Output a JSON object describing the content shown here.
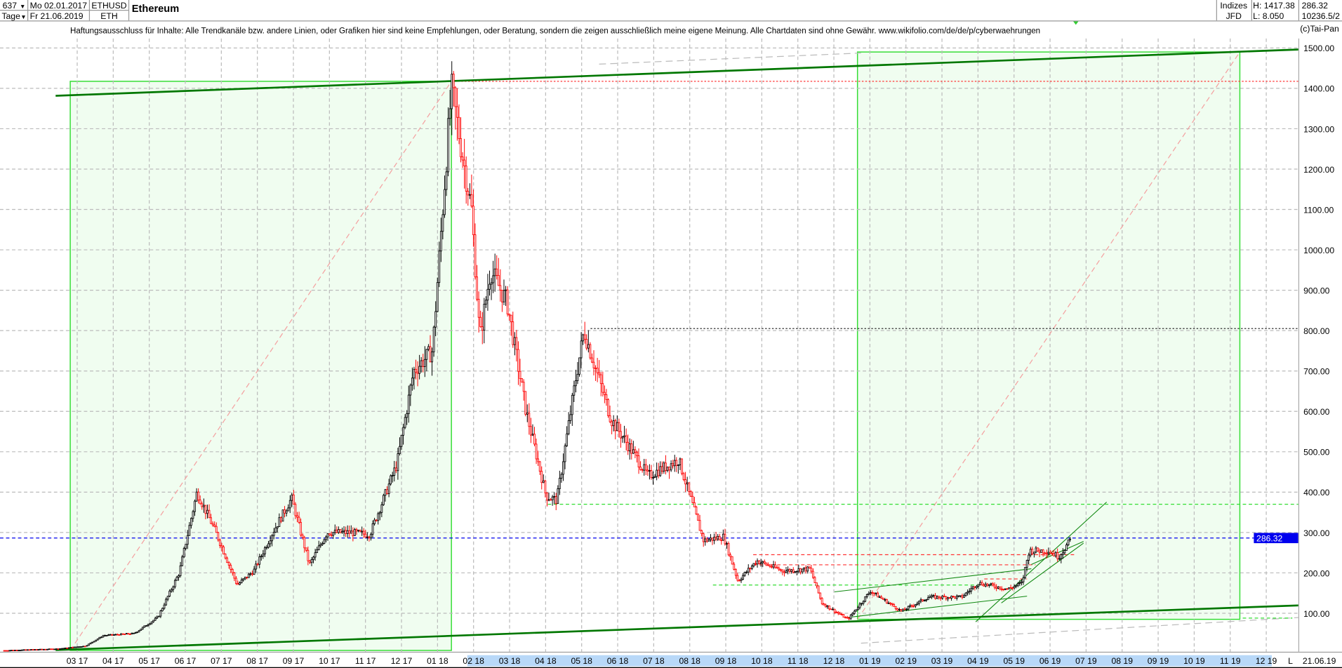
{
  "header": {
    "bar_count": "637",
    "period": "Tage",
    "date_from": "Mo 02.01.2017",
    "date_to": "Fr 21.06.2019",
    "symbol": "ETHUSD",
    "symbol_short": "ETH",
    "title": "Ethereum",
    "category": "Indizes",
    "exchange": "JFD",
    "high": "H: 1417.38",
    "low": "L: 8.050",
    "last": "286.32",
    "volume": "10236.5/2",
    "copyright": "(c)Tai-Pan"
  },
  "disclaimer": "Haftungsausschluss für Inhalte: Alle Trendkanäle bzw. andere Linien, oder Grafiken hier sind keine Empfehlungen, oder Beratung, sondern die zeigen ausschließlich meine eigene Meinung. Alle Chartdaten sind ohne Gewähr.  www.wikifolio.com/de/de/p/cyberwaehrungen",
  "colors": {
    "up": "#000000",
    "down": "#ff0000",
    "box_fill": "#f0fdf0",
    "box_stroke": "#33dd33",
    "trend": "#007700",
    "last_price": "#0000ee"
  },
  "chart_data": {
    "type": "candlestick",
    "title": "Ethereum",
    "ylim": [
      0,
      1560
    ],
    "grid": true,
    "y_ticks": [
      "100.00",
      "200.00",
      "300.00",
      "400.00",
      "500.00",
      "600.00",
      "700.00",
      "800.00",
      "900.00",
      "1000.00",
      "1100.00",
      "1200.00",
      "1300.00",
      "1400.00",
      "1500.00"
    ],
    "x_ticks": [
      "03 17",
      "04 17",
      "05 17",
      "06 17",
      "07 17",
      "08 17",
      "09 17",
      "10 17",
      "11 17",
      "12 17",
      "01 18",
      "02 18",
      "03 18",
      "04 18",
      "05 18",
      "06 18",
      "07 18",
      "08 18",
      "09 18",
      "10 18",
      "11 18",
      "12 18",
      "01 19",
      "02 19",
      "03 19",
      "04 19",
      "05 19",
      "06 19",
      "07 19",
      "08 19",
      "09 19",
      "10 19",
      "11 19",
      "12 19"
    ],
    "x_end_marker": "L",
    "x_end_label": "21.06.19",
    "last_price_label": "286.32",
    "close_path": [
      [
        "2017-01-02",
        8
      ],
      [
        "2017-02-15",
        12
      ],
      [
        "2017-03-10",
        19
      ],
      [
        "2017-03-25",
        45
      ],
      [
        "2017-04-20",
        50
      ],
      [
        "2017-05-10",
        90
      ],
      [
        "2017-05-28",
        200
      ],
      [
        "2017-06-12",
        400
      ],
      [
        "2017-06-28",
        300
      ],
      [
        "2017-07-16",
        170
      ],
      [
        "2017-07-30",
        205
      ],
      [
        "2017-08-15",
        300
      ],
      [
        "2017-08-31",
        385
      ],
      [
        "2017-09-15",
        220
      ],
      [
        "2017-09-30",
        300
      ],
      [
        "2017-10-20",
        300
      ],
      [
        "2017-11-05",
        295
      ],
      [
        "2017-11-28",
        470
      ],
      [
        "2017-12-12",
        700
      ],
      [
        "2017-12-28",
        750
      ],
      [
        "2018-01-13",
        1400
      ],
      [
        "2018-01-30",
        1100
      ],
      [
        "2018-02-06",
        780
      ],
      [
        "2018-02-15",
        950
      ],
      [
        "2018-03-01",
        870
      ],
      [
        "2018-03-17",
        600
      ],
      [
        "2018-04-03",
        390
      ],
      [
        "2018-04-12",
        380
      ],
      [
        "2018-04-28",
        680
      ],
      [
        "2018-05-05",
        800
      ],
      [
        "2018-05-28",
        580
      ],
      [
        "2018-06-15",
        500
      ],
      [
        "2018-06-28",
        440
      ],
      [
        "2018-07-24",
        480
      ],
      [
        "2018-08-14",
        280
      ],
      [
        "2018-08-31",
        290
      ],
      [
        "2018-09-12",
        180
      ],
      [
        "2018-09-28",
        230
      ],
      [
        "2018-10-20",
        205
      ],
      [
        "2018-11-12",
        210
      ],
      [
        "2018-11-22",
        125
      ],
      [
        "2018-12-14",
        85
      ],
      [
        "2019-01-02",
        155
      ],
      [
        "2019-01-28",
        105
      ],
      [
        "2019-02-20",
        140
      ],
      [
        "2019-03-20",
        140
      ],
      [
        "2019-04-03",
        175
      ],
      [
        "2019-04-28",
        160
      ],
      [
        "2019-05-10",
        175
      ],
      [
        "2019-05-16",
        255
      ],
      [
        "2019-06-01",
        255
      ],
      [
        "2019-06-10",
        240
      ],
      [
        "2019-06-21",
        286.32
      ]
    ],
    "annotations": {
      "horizontal_levels": [
        1417.38,
        805,
        370,
        286.32,
        245,
        220,
        185,
        88
      ],
      "trend_channel_top": [
        [
          "2017-01-15",
          1380
        ],
        [
          "2020-01-15",
          1500
        ]
      ],
      "trend_channel_bottom": [
        [
          "2017-01-15",
          8
        ],
        [
          "2020-01-15",
          125
        ]
      ],
      "boxes": [
        {
          "from": "2017-02-25",
          "to": "2018-01-13",
          "low": 8,
          "high": 1417.38
        },
        {
          "from": "2018-12-22",
          "to": "2019-11-10",
          "low": 85,
          "high": 1490
        }
      ]
    }
  }
}
